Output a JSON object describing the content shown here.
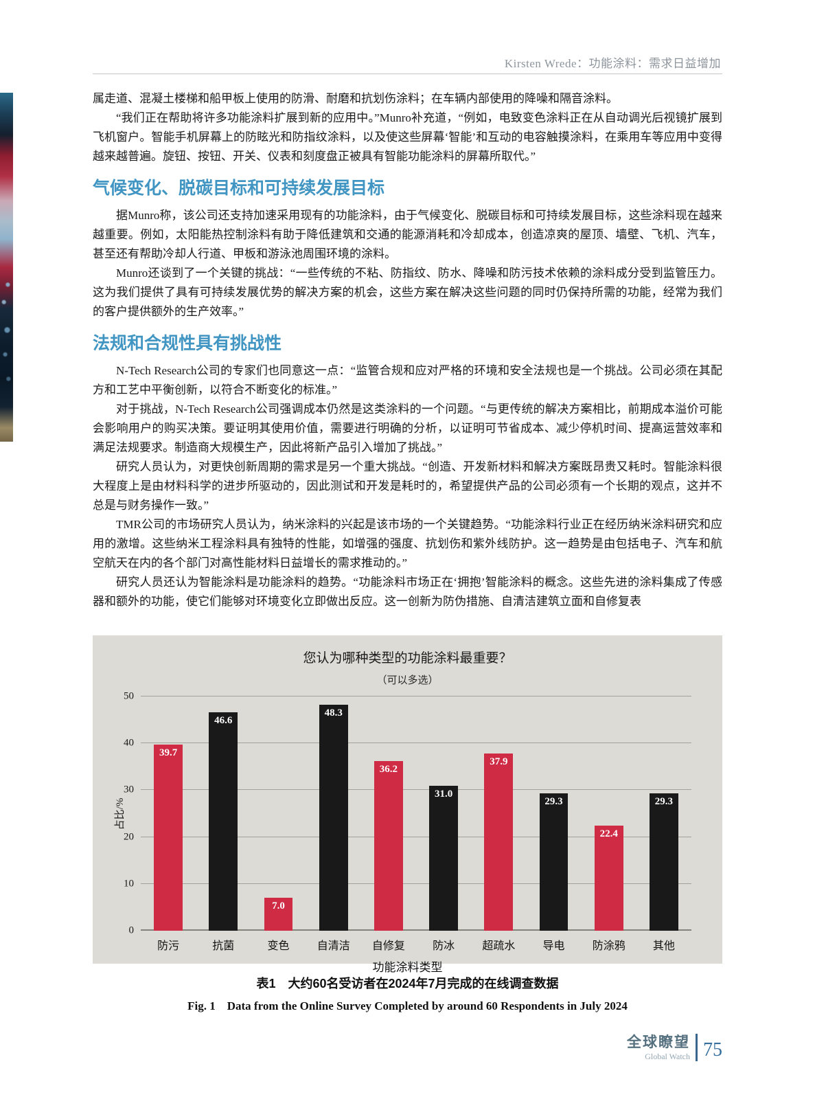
{
  "page": {
    "header": "Kirsten Wrede：功能涂料：需求日益增加",
    "footer": {
      "brand_cn": "全球瞭望",
      "brand_en": "Global Watch",
      "page_number": "75"
    }
  },
  "article": {
    "intro_paragraphs": [
      "属走道、混凝土楼梯和船甲板上使用的防滑、耐磨和抗划伤涂料；在车辆内部使用的降噪和隔音涂料。",
      "“我们正在帮助将许多功能涂料扩展到新的应用中。”Munro补充道，“例如，电致变色涂料正在从自动调光后视镜扩展到飞机窗户。智能手机屏幕上的防眩光和防指纹涂料，以及使这些屏幕‘智能’和互动的电容触摸涂料，在乘用车等应用中变得越来越普遍。旋钮、按钮、开关、仪表和刻度盘正被具有智能功能涂料的屏幕所取代。”"
    ],
    "sections": [
      {
        "heading": "气候变化、脱碳目标和可持续发展目标",
        "paragraphs": [
          "据Munro称，该公司还支持加速采用现有的功能涂料，由于气候变化、脱碳目标和可持续发展目标，这些涂料现在越来越重要。例如，太阳能热控制涂料有助于降低建筑和交通的能源消耗和冷却成本，创造凉爽的屋顶、墙壁、飞机、汽车，甚至还有帮助冷却人行道、甲板和游泳池周围环境的涂料。",
          "Munro还谈到了一个关键的挑战：“一些传统的不粘、防指纹、防水、降噪和防污技术依赖的涂料成分受到监管压力。这为我们提供了具有可持续发展优势的解决方案的机会，这些方案在解决这些问题的同时仍保持所需的功能，经常为我们的客户提供额外的生产效率。”"
        ]
      },
      {
        "heading": "法规和合规性具有挑战性",
        "paragraphs": [
          "N-Tech Research公司的专家们也同意这一点：“监管合规和应对严格的环境和安全法规也是一个挑战。公司必须在其配方和工艺中平衡创新，以符合不断变化的标准。”",
          "对于挑战，N-Tech Research公司强调成本仍然是这类涂料的一个问题。“与更传统的解决方案相比，前期成本溢价可能会影响用户的购买决策。要证明其使用价值，需要进行明确的分析，以证明可节省成本、减少停机时间、提高运营效率和满足法规要求。制造商大规模生产，因此将新产品引入增加了挑战。”",
          "研究人员认为，对更快创新周期的需求是另一个重大挑战。“创造、开发新材料和解决方案既昂贵又耗时。智能涂料很大程度上是由材料科学的进步所驱动的，因此测试和开发是耗时的，希望提供产品的公司必须有一个长期的观点，这并不总是与财务操作一致。”",
          "TMR公司的市场研究人员认为，纳米涂料的兴起是该市场的一个关键趋势。“功能涂料行业正在经历纳米涂料研究和应用的激增。这些纳米工程涂料具有独特的性能，如增强的强度、抗划伤和紫外线防护。这一趋势是由包括电子、汽车和航空航天在内的各个部门对高性能材料日益增长的需求推动的。”",
          "研究人员还认为智能涂料是功能涂料的趋势。“功能涂料市场正在‘拥抱’智能涂料的概念。这些先进的涂料集成了传感器和额外的功能，使它们能够对环境变化立即做出反应。这一创新为防伪措施、自清洁建筑立面和自修复表"
        ]
      }
    ]
  },
  "figure": {
    "caption_cn": "表1　大约60名受访者在2024年7月完成的在线调查数据",
    "caption_en": "Fig. 1　Data from the Online Survey Completed by around 60 Respondents in July 2024"
  },
  "chart_data": {
    "type": "bar",
    "title": "您认为哪种类型的功能涂料最重要？",
    "subtitle": "（可以多选）",
    "categories": [
      "防污",
      "抗菌",
      "变色",
      "自清洁",
      "自修复",
      "防冰",
      "超疏水",
      "导电",
      "防涂鸦",
      "其他"
    ],
    "values": [
      39.7,
      46.6,
      7.0,
      48.3,
      36.2,
      31.0,
      37.9,
      29.3,
      22.4,
      29.3
    ],
    "bar_colors": [
      "#cf2b45",
      "#191919",
      "#cf2b45",
      "#191919",
      "#cf2b45",
      "#191919",
      "#cf2b45",
      "#191919",
      "#cf2b45",
      "#191919"
    ],
    "value_label_color": "#ffffff",
    "xlabel": "功能涂料类型",
    "ylabel": "占比/%",
    "ylim": [
      0,
      50
    ],
    "yticks": [
      0,
      10,
      20,
      30,
      40,
      50
    ],
    "grid": true,
    "legend": false,
    "panel_background": "#dcdbd5"
  },
  "colors": {
    "section_heading_blue": "#4195c2",
    "bar_red": "#cf2b45",
    "bar_black": "#191919",
    "footer_blue": "#366e9c"
  }
}
